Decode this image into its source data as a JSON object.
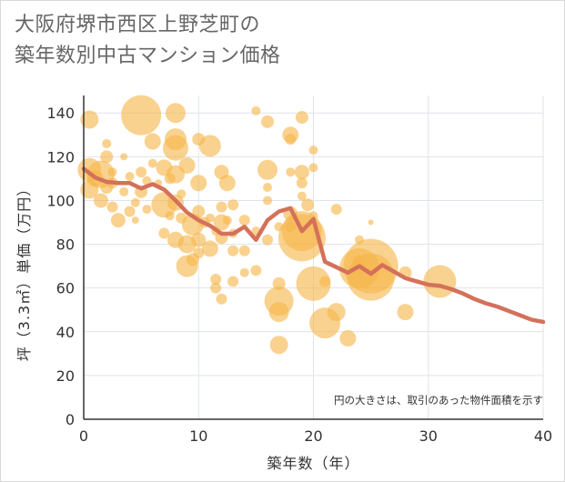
{
  "title": {
    "line1": "大阪府堺市西区上野芝町の",
    "line2": "築年数別中古マンション価格"
  },
  "chart_data": {
    "type": "scatter",
    "title": "大阪府堺市西区上野芝町の築年数別中古マンション価格",
    "xlabel": "築年数（年）",
    "ylabel": "坪（3.3㎡）単価（万円）",
    "xlim": [
      0,
      40
    ],
    "ylim": [
      0,
      148
    ],
    "xticks": [
      0,
      10,
      20,
      30,
      40
    ],
    "yticks": [
      0,
      20,
      40,
      60,
      80,
      100,
      120,
      140
    ],
    "grid": true,
    "note": "円の大きさは、取引のあった物件面積を示す",
    "colors": {
      "bubble": "#f5b74a",
      "line": "#d4715a",
      "grid": "#dfe3ea",
      "axis": "#333333"
    },
    "bubbles": [
      {
        "x": 0.5,
        "y": 137,
        "s": 10
      },
      {
        "x": 0.5,
        "y": 114,
        "s": 13
      },
      {
        "x": 0.5,
        "y": 105,
        "s": 10
      },
      {
        "x": 1.0,
        "y": 110,
        "s": 9
      },
      {
        "x": 1.5,
        "y": 112,
        "s": 15
      },
      {
        "x": 1.5,
        "y": 100,
        "s": 8
      },
      {
        "x": 2.0,
        "y": 126,
        "s": 5
      },
      {
        "x": 2.0,
        "y": 120,
        "s": 7
      },
      {
        "x": 2.0,
        "y": 106,
        "s": 7
      },
      {
        "x": 2.5,
        "y": 113,
        "s": 5
      },
      {
        "x": 2.5,
        "y": 97,
        "s": 6
      },
      {
        "x": 2.5,
        "y": 108,
        "s": 6
      },
      {
        "x": 3.0,
        "y": 91,
        "s": 8
      },
      {
        "x": 3.5,
        "y": 104,
        "s": 5
      },
      {
        "x": 3.5,
        "y": 120,
        "s": 4
      },
      {
        "x": 4.0,
        "y": 111,
        "s": 5
      },
      {
        "x": 4.0,
        "y": 95,
        "s": 6
      },
      {
        "x": 4.5,
        "y": 91,
        "s": 4
      },
      {
        "x": 4.5,
        "y": 99,
        "s": 5
      },
      {
        "x": 5.0,
        "y": 139,
        "s": 22
      },
      {
        "x": 5.0,
        "y": 113,
        "s": 6
      },
      {
        "x": 5.0,
        "y": 104,
        "s": 7
      },
      {
        "x": 5.5,
        "y": 109,
        "s": 5
      },
      {
        "x": 5.5,
        "y": 96,
        "s": 5
      },
      {
        "x": 6.0,
        "y": 127,
        "s": 9
      },
      {
        "x": 6.0,
        "y": 117,
        "s": 5
      },
      {
        "x": 6.5,
        "y": 108,
        "s": 4
      },
      {
        "x": 7.0,
        "y": 115,
        "s": 9
      },
      {
        "x": 7.0,
        "y": 98,
        "s": 14
      },
      {
        "x": 7.0,
        "y": 85,
        "s": 6
      },
      {
        "x": 7.5,
        "y": 110,
        "s": 6
      },
      {
        "x": 7.5,
        "y": 93,
        "s": 5
      },
      {
        "x": 8.0,
        "y": 140,
        "s": 11
      },
      {
        "x": 8.0,
        "y": 128,
        "s": 12
      },
      {
        "x": 8.0,
        "y": 124,
        "s": 14
      },
      {
        "x": 8.0,
        "y": 112,
        "s": 10
      },
      {
        "x": 8.0,
        "y": 99,
        "s": 9
      },
      {
        "x": 8.0,
        "y": 82,
        "s": 9
      },
      {
        "x": 8.5,
        "y": 103,
        "s": 5
      },
      {
        "x": 8.5,
        "y": 92,
        "s": 6
      },
      {
        "x": 9.0,
        "y": 116,
        "s": 9
      },
      {
        "x": 9.0,
        "y": 80,
        "s": 10
      },
      {
        "x": 9.0,
        "y": 70,
        "s": 12
      },
      {
        "x": 9.5,
        "y": 89,
        "s": 12
      },
      {
        "x": 9.5,
        "y": 73,
        "s": 7
      },
      {
        "x": 10.0,
        "y": 128,
        "s": 7
      },
      {
        "x": 10.0,
        "y": 108,
        "s": 9
      },
      {
        "x": 10.0,
        "y": 95,
        "s": 7
      },
      {
        "x": 10.0,
        "y": 82,
        "s": 8
      },
      {
        "x": 10.0,
        "y": 76,
        "s": 6
      },
      {
        "x": 10.5,
        "y": 90,
        "s": 6
      },
      {
        "x": 11.0,
        "y": 125,
        "s": 12
      },
      {
        "x": 11.0,
        "y": 92,
        "s": 5
      },
      {
        "x": 11.0,
        "y": 78,
        "s": 9
      },
      {
        "x": 11.5,
        "y": 86,
        "s": 5
      },
      {
        "x": 11.5,
        "y": 64,
        "s": 6
      },
      {
        "x": 11.5,
        "y": 60,
        "s": 6
      },
      {
        "x": 12.0,
        "y": 113,
        "s": 8
      },
      {
        "x": 12.0,
        "y": 97,
        "s": 6
      },
      {
        "x": 12.0,
        "y": 90,
        "s": 9
      },
      {
        "x": 12.0,
        "y": 83,
        "s": 7
      },
      {
        "x": 12.0,
        "y": 55,
        "s": 6
      },
      {
        "x": 12.5,
        "y": 108,
        "s": 9
      },
      {
        "x": 12.5,
        "y": 91,
        "s": 5
      },
      {
        "x": 13.0,
        "y": 98,
        "s": 6
      },
      {
        "x": 13.0,
        "y": 85,
        "s": 5
      },
      {
        "x": 13.0,
        "y": 77,
        "s": 6
      },
      {
        "x": 13.0,
        "y": 63,
        "s": 6
      },
      {
        "x": 14.0,
        "y": 91,
        "s": 6
      },
      {
        "x": 14.0,
        "y": 77,
        "s": 6
      },
      {
        "x": 14.0,
        "y": 67,
        "s": 5
      },
      {
        "x": 15.0,
        "y": 141,
        "s": 5
      },
      {
        "x": 15.0,
        "y": 86,
        "s": 5
      },
      {
        "x": 15.0,
        "y": 68,
        "s": 6
      },
      {
        "x": 16.0,
        "y": 136,
        "s": 7
      },
      {
        "x": 16.0,
        "y": 114,
        "s": 11
      },
      {
        "x": 16.0,
        "y": 106,
        "s": 5
      },
      {
        "x": 16.0,
        "y": 100,
        "s": 5
      },
      {
        "x": 16.0,
        "y": 82,
        "s": 6
      },
      {
        "x": 17.0,
        "y": 88,
        "s": 5
      },
      {
        "x": 17.0,
        "y": 62,
        "s": 7
      },
      {
        "x": 17.0,
        "y": 54,
        "s": 16
      },
      {
        "x": 17.0,
        "y": 49,
        "s": 11
      },
      {
        "x": 17.0,
        "y": 34,
        "s": 10
      },
      {
        "x": 18.0,
        "y": 130,
        "s": 9
      },
      {
        "x": 18.0,
        "y": 128,
        "s": 6
      },
      {
        "x": 18.0,
        "y": 113,
        "s": 5
      },
      {
        "x": 18.0,
        "y": 94,
        "s": 8
      },
      {
        "x": 18.0,
        "y": 88,
        "s": 6
      },
      {
        "x": 19.0,
        "y": 138,
        "s": 7
      },
      {
        "x": 19.0,
        "y": 113,
        "s": 8
      },
      {
        "x": 19.0,
        "y": 108,
        "s": 6
      },
      {
        "x": 19.0,
        "y": 102,
        "s": 5
      },
      {
        "x": 19.0,
        "y": 86,
        "s": 22
      },
      {
        "x": 19.0,
        "y": 83,
        "s": 26
      },
      {
        "x": 19.5,
        "y": 98,
        "s": 7
      },
      {
        "x": 20.0,
        "y": 123,
        "s": 5
      },
      {
        "x": 20.0,
        "y": 115,
        "s": 5
      },
      {
        "x": 20.0,
        "y": 93,
        "s": 5
      },
      {
        "x": 20.0,
        "y": 62,
        "s": 19
      },
      {
        "x": 21.0,
        "y": 63,
        "s": 6
      },
      {
        "x": 21.0,
        "y": 44,
        "s": 17
      },
      {
        "x": 22.0,
        "y": 96,
        "s": 6
      },
      {
        "x": 22.0,
        "y": 49,
        "s": 10
      },
      {
        "x": 23.0,
        "y": 37,
        "s": 9
      },
      {
        "x": 24.0,
        "y": 82,
        "s": 5
      },
      {
        "x": 24.0,
        "y": 72,
        "s": 7
      },
      {
        "x": 24.0,
        "y": 69,
        "s": 22
      },
      {
        "x": 25.0,
        "y": 90,
        "s": 3
      },
      {
        "x": 25.0,
        "y": 65,
        "s": 26
      },
      {
        "x": 25.0,
        "y": 70,
        "s": 30
      },
      {
        "x": 28.0,
        "y": 67,
        "s": 7
      },
      {
        "x": 28.0,
        "y": 49,
        "s": 9
      },
      {
        "x": 31.0,
        "y": 63,
        "s": 18
      }
    ],
    "series": [
      {
        "type": "line",
        "x": [
          0,
          1,
          2,
          3,
          4,
          5,
          6,
          7,
          8,
          9,
          10,
          11,
          12,
          13,
          14,
          15,
          16,
          17,
          18,
          19,
          20,
          21,
          22,
          23,
          24,
          25,
          26,
          27,
          28,
          29,
          30,
          31,
          32,
          33,
          34,
          35,
          36,
          37,
          38,
          39,
          40
        ],
        "y": [
          114.5,
          110.5,
          108.5,
          108.0,
          108.0,
          105.5,
          107.5,
          105.0,
          100.0,
          94.5,
          91.0,
          88.5,
          84.8,
          84.8,
          88.0,
          82.0,
          91.0,
          95.0,
          96.5,
          86.0,
          91.5,
          72.0,
          69.5,
          67.0,
          70.0,
          66.5,
          70.5,
          67.5,
          64.5,
          63.0,
          61.5,
          61.0,
          59.5,
          57.5,
          55.0,
          53.0,
          51.5,
          49.5,
          47.5,
          45.5,
          44.5
        ]
      }
    ]
  }
}
